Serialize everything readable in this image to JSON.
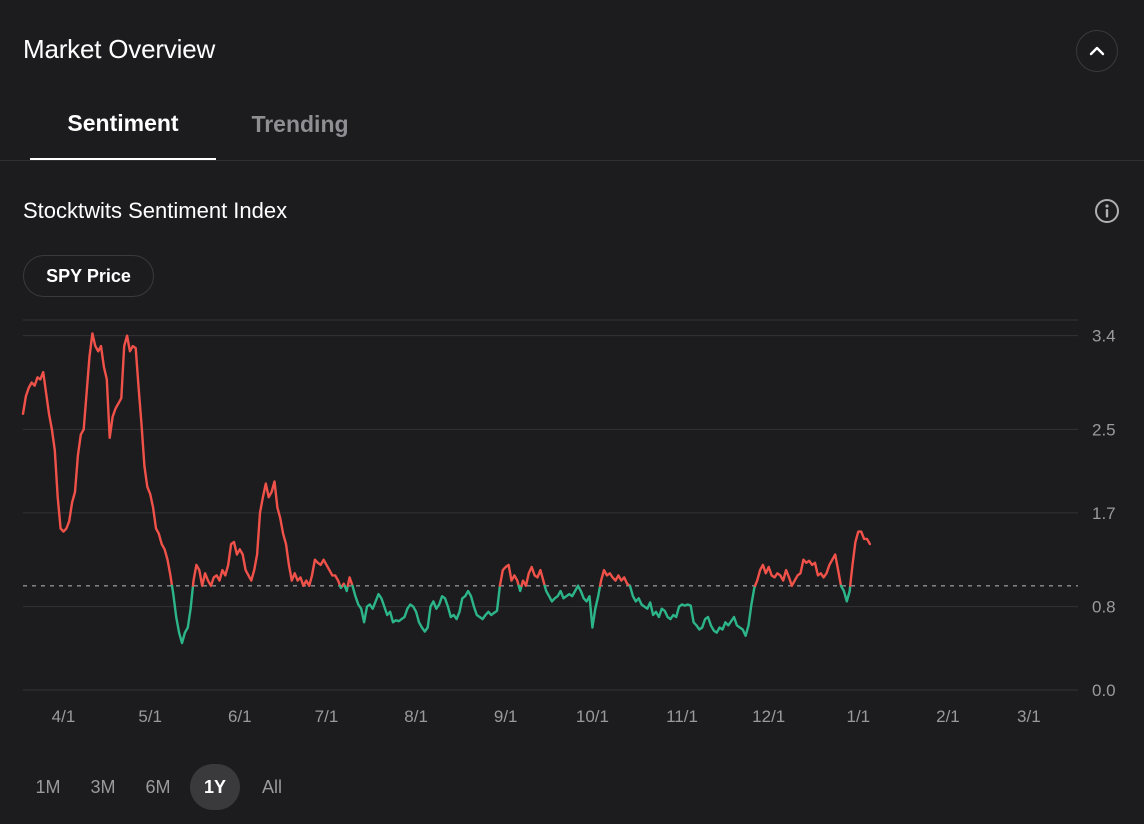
{
  "header": {
    "title": "Market Overview",
    "collapse_icon": "chevron-up-icon"
  },
  "tabs": [
    {
      "label": "Sentiment",
      "active": true
    },
    {
      "label": "Trending",
      "active": false
    }
  ],
  "section": {
    "title": "Stocktwits Sentiment Index",
    "info_icon": "info-icon"
  },
  "toggle": {
    "label": "SPY Price"
  },
  "time_ranges": [
    {
      "label": "1M",
      "active": false
    },
    {
      "label": "3M",
      "active": false
    },
    {
      "label": "6M",
      "active": false
    },
    {
      "label": "1Y",
      "active": true
    },
    {
      "label": "All",
      "active": false
    }
  ],
  "colors": {
    "background": "#1c1c1e",
    "above_baseline": "#f0524a",
    "below_baseline": "#2db58a",
    "grid": "#333336",
    "baseline": "#8e8e93",
    "axis_text": "#9a9a9e"
  },
  "chart_data": {
    "type": "line",
    "title": "Stocktwits Sentiment Index",
    "xlabel": "",
    "ylabel": "",
    "y_ticks": [
      {
        "value": 3.4,
        "label": "3.4"
      },
      {
        "value": 2.5,
        "label": "2.5"
      },
      {
        "value": 1.7,
        "label": "1.7"
      },
      {
        "value": 0.8,
        "label": "0.8"
      },
      {
        "value": 0.0,
        "label": "0.0"
      }
    ],
    "ylim": [
      0,
      3.55
    ],
    "baseline": 1.0,
    "x_ticks": [
      {
        "day": 14,
        "label": "4/1"
      },
      {
        "day": 44,
        "label": "5/1"
      },
      {
        "day": 75,
        "label": "6/1"
      },
      {
        "day": 105,
        "label": "7/1"
      },
      {
        "day": 136,
        "label": "8/1"
      },
      {
        "day": 167,
        "label": "9/1"
      },
      {
        "day": 197,
        "label": "10/1"
      },
      {
        "day": 228,
        "label": "11/1"
      },
      {
        "day": 258,
        "label": "12/1"
      },
      {
        "day": 289,
        "label": "1/1"
      },
      {
        "day": 320,
        "label": "2/1"
      },
      {
        "day": 348,
        "label": "3/1"
      }
    ],
    "xlim": [
      0,
      365
    ],
    "points": [
      [
        0,
        2.65
      ],
      [
        1,
        2.82
      ],
      [
        2,
        2.9
      ],
      [
        3,
        2.95
      ],
      [
        4,
        2.92
      ],
      [
        5,
        3.0
      ],
      [
        6,
        2.98
      ],
      [
        7,
        3.05
      ],
      [
        8,
        2.85
      ],
      [
        9,
        2.65
      ],
      [
        10,
        2.5
      ],
      [
        11,
        2.3
      ],
      [
        12,
        1.85
      ],
      [
        13,
        1.55
      ],
      [
        14,
        1.52
      ],
      [
        15,
        1.55
      ],
      [
        16,
        1.62
      ],
      [
        17,
        1.8
      ],
      [
        18,
        1.9
      ],
      [
        19,
        2.25
      ],
      [
        20,
        2.45
      ],
      [
        21,
        2.5
      ],
      [
        22,
        2.85
      ],
      [
        23,
        3.2
      ],
      [
        24,
        3.42
      ],
      [
        25,
        3.3
      ],
      [
        26,
        3.25
      ],
      [
        27,
        3.3
      ],
      [
        28,
        3.1
      ],
      [
        29,
        2.98
      ],
      [
        30,
        2.42
      ],
      [
        31,
        2.62
      ],
      [
        32,
        2.7
      ],
      [
        33,
        2.75
      ],
      [
        34,
        2.8
      ],
      [
        35,
        3.3
      ],
      [
        36,
        3.4
      ],
      [
        37,
        3.25
      ],
      [
        38,
        3.3
      ],
      [
        39,
        3.28
      ],
      [
        40,
        2.9
      ],
      [
        41,
        2.55
      ],
      [
        42,
        2.15
      ],
      [
        43,
        1.95
      ],
      [
        44,
        1.88
      ],
      [
        45,
        1.75
      ],
      [
        46,
        1.55
      ],
      [
        47,
        1.5
      ],
      [
        48,
        1.4
      ],
      [
        49,
        1.35
      ],
      [
        50,
        1.25
      ],
      [
        51,
        1.1
      ],
      [
        52,
        0.92
      ],
      [
        53,
        0.7
      ],
      [
        54,
        0.55
      ],
      [
        55,
        0.45
      ],
      [
        56,
        0.55
      ],
      [
        57,
        0.6
      ],
      [
        58,
        0.78
      ],
      [
        59,
        1.05
      ],
      [
        60,
        1.2
      ],
      [
        61,
        1.15
      ],
      [
        62,
        1.0
      ],
      [
        63,
        1.12
      ],
      [
        64,
        1.05
      ],
      [
        65,
        1.0
      ],
      [
        66,
        1.08
      ],
      [
        67,
        1.1
      ],
      [
        68,
        1.05
      ],
      [
        69,
        1.15
      ],
      [
        70,
        1.1
      ],
      [
        71,
        1.2
      ],
      [
        72,
        1.4
      ],
      [
        73,
        1.42
      ],
      [
        74,
        1.3
      ],
      [
        75,
        1.35
      ],
      [
        76,
        1.3
      ],
      [
        77,
        1.15
      ],
      [
        78,
        1.1
      ],
      [
        79,
        1.05
      ],
      [
        80,
        1.15
      ],
      [
        81,
        1.3
      ],
      [
        82,
        1.7
      ],
      [
        83,
        1.85
      ],
      [
        84,
        1.98
      ],
      [
        85,
        1.85
      ],
      [
        86,
        1.9
      ],
      [
        87,
        2.0
      ],
      [
        88,
        1.75
      ],
      [
        89,
        1.65
      ],
      [
        90,
        1.5
      ],
      [
        91,
        1.4
      ],
      [
        92,
        1.2
      ],
      [
        93,
        1.05
      ],
      [
        94,
        1.12
      ],
      [
        95,
        1.05
      ],
      [
        96,
        1.08
      ],
      [
        97,
        1.0
      ],
      [
        98,
        1.05
      ],
      [
        99,
        1.0
      ],
      [
        100,
        1.1
      ],
      [
        101,
        1.25
      ],
      [
        102,
        1.22
      ],
      [
        103,
        1.2
      ],
      [
        104,
        1.25
      ],
      [
        105,
        1.2
      ],
      [
        106,
        1.15
      ],
      [
        107,
        1.1
      ],
      [
        108,
        1.1
      ],
      [
        109,
        1.05
      ],
      [
        110,
        0.98
      ],
      [
        111,
        1.02
      ],
      [
        112,
        0.95
      ],
      [
        113,
        1.08
      ],
      [
        114,
        1.0
      ],
      [
        115,
        0.9
      ],
      [
        116,
        0.82
      ],
      [
        117,
        0.78
      ],
      [
        118,
        0.65
      ],
      [
        119,
        0.8
      ],
      [
        120,
        0.82
      ],
      [
        121,
        0.78
      ],
      [
        122,
        0.85
      ],
      [
        123,
        0.92
      ],
      [
        124,
        0.88
      ],
      [
        125,
        0.8
      ],
      [
        126,
        0.72
      ],
      [
        127,
        0.75
      ],
      [
        128,
        0.65
      ],
      [
        129,
        0.67
      ],
      [
        130,
        0.66
      ],
      [
        131,
        0.68
      ],
      [
        132,
        0.7
      ],
      [
        133,
        0.78
      ],
      [
        134,
        0.82
      ],
      [
        135,
        0.8
      ],
      [
        136,
        0.75
      ],
      [
        137,
        0.65
      ],
      [
        138,
        0.6
      ],
      [
        139,
        0.56
      ],
      [
        140,
        0.6
      ],
      [
        141,
        0.8
      ],
      [
        142,
        0.85
      ],
      [
        143,
        0.78
      ],
      [
        144,
        0.82
      ],
      [
        145,
        0.9
      ],
      [
        146,
        0.88
      ],
      [
        147,
        0.8
      ],
      [
        148,
        0.7
      ],
      [
        149,
        0.72
      ],
      [
        150,
        0.68
      ],
      [
        151,
        0.75
      ],
      [
        152,
        0.88
      ],
      [
        153,
        0.9
      ],
      [
        154,
        0.95
      ],
      [
        155,
        0.9
      ],
      [
        156,
        0.8
      ],
      [
        157,
        0.72
      ],
      [
        158,
        0.7
      ],
      [
        159,
        0.68
      ],
      [
        160,
        0.72
      ],
      [
        161,
        0.75
      ],
      [
        162,
        0.72
      ],
      [
        163,
        0.74
      ],
      [
        164,
        0.76
      ],
      [
        165,
        1.0
      ],
      [
        166,
        1.15
      ],
      [
        167,
        1.18
      ],
      [
        168,
        1.2
      ],
      [
        169,
        1.05
      ],
      [
        170,
        1.1
      ],
      [
        171,
        1.05
      ],
      [
        172,
        0.95
      ],
      [
        173,
        1.05
      ],
      [
        174,
        1.0
      ],
      [
        175,
        1.12
      ],
      [
        176,
        1.18
      ],
      [
        177,
        1.1
      ],
      [
        178,
        1.08
      ],
      [
        179,
        1.15
      ],
      [
        180,
        1.05
      ],
      [
        181,
        0.95
      ],
      [
        182,
        0.9
      ],
      [
        183,
        0.85
      ],
      [
        184,
        0.88
      ],
      [
        185,
        0.9
      ],
      [
        186,
        0.95
      ],
      [
        187,
        0.88
      ],
      [
        188,
        0.9
      ],
      [
        189,
        0.92
      ],
      [
        190,
        0.9
      ],
      [
        191,
        0.95
      ],
      [
        192,
        1.0
      ],
      [
        193,
        0.95
      ],
      [
        194,
        0.88
      ],
      [
        195,
        0.85
      ],
      [
        196,
        0.9
      ],
      [
        197,
        0.6
      ],
      [
        198,
        0.78
      ],
      [
        199,
        0.9
      ],
      [
        200,
        1.05
      ],
      [
        201,
        1.15
      ],
      [
        202,
        1.1
      ],
      [
        203,
        1.12
      ],
      [
        204,
        1.08
      ],
      [
        205,
        1.05
      ],
      [
        206,
        1.1
      ],
      [
        207,
        1.05
      ],
      [
        208,
        1.08
      ],
      [
        209,
        1.02
      ],
      [
        210,
        1.0
      ],
      [
        211,
        0.9
      ],
      [
        212,
        0.85
      ],
      [
        213,
        0.88
      ],
      [
        214,
        0.82
      ],
      [
        215,
        0.8
      ],
      [
        216,
        0.78
      ],
      [
        217,
        0.84
      ],
      [
        218,
        0.72
      ],
      [
        219,
        0.75
      ],
      [
        220,
        0.7
      ],
      [
        221,
        0.78
      ],
      [
        222,
        0.76
      ],
      [
        223,
        0.7
      ],
      [
        224,
        0.68
      ],
      [
        225,
        0.72
      ],
      [
        226,
        0.7
      ],
      [
        227,
        0.8
      ],
      [
        228,
        0.82
      ],
      [
        229,
        0.81
      ],
      [
        230,
        0.82
      ],
      [
        231,
        0.81
      ],
      [
        232,
        0.65
      ],
      [
        233,
        0.62
      ],
      [
        234,
        0.58
      ],
      [
        235,
        0.6
      ],
      [
        236,
        0.68
      ],
      [
        237,
        0.7
      ],
      [
        238,
        0.62
      ],
      [
        239,
        0.57
      ],
      [
        240,
        0.55
      ],
      [
        241,
        0.6
      ],
      [
        242,
        0.58
      ],
      [
        243,
        0.65
      ],
      [
        244,
        0.62
      ],
      [
        245,
        0.66
      ],
      [
        246,
        0.7
      ],
      [
        247,
        0.62
      ],
      [
        248,
        0.6
      ],
      [
        249,
        0.58
      ],
      [
        250,
        0.52
      ],
      [
        251,
        0.62
      ],
      [
        252,
        0.82
      ],
      [
        253,
        0.98
      ],
      [
        254,
        1.05
      ],
      [
        255,
        1.15
      ],
      [
        256,
        1.2
      ],
      [
        257,
        1.12
      ],
      [
        258,
        1.18
      ],
      [
        259,
        1.1
      ],
      [
        260,
        1.08
      ],
      [
        261,
        1.12
      ],
      [
        262,
        1.1
      ],
      [
        263,
        1.05
      ],
      [
        264,
        1.15
      ],
      [
        265,
        1.08
      ],
      [
        266,
        1.0
      ],
      [
        267,
        1.05
      ],
      [
        268,
        1.1
      ],
      [
        269,
        1.12
      ],
      [
        270,
        1.25
      ],
      [
        271,
        1.22
      ],
      [
        272,
        1.24
      ],
      [
        273,
        1.2
      ],
      [
        274,
        1.22
      ],
      [
        275,
        1.1
      ],
      [
        276,
        1.12
      ],
      [
        277,
        1.08
      ],
      [
        278,
        1.12
      ],
      [
        279,
        1.2
      ],
      [
        280,
        1.25
      ],
      [
        281,
        1.3
      ],
      [
        282,
        1.15
      ],
      [
        283,
        1.0
      ],
      [
        284,
        0.95
      ],
      [
        285,
        0.85
      ],
      [
        286,
        0.95
      ],
      [
        287,
        1.2
      ],
      [
        288,
        1.42
      ],
      [
        289,
        1.52
      ],
      [
        290,
        1.52
      ],
      [
        291,
        1.45
      ],
      [
        292,
        1.45
      ],
      [
        293,
        1.4
      ]
    ]
  }
}
